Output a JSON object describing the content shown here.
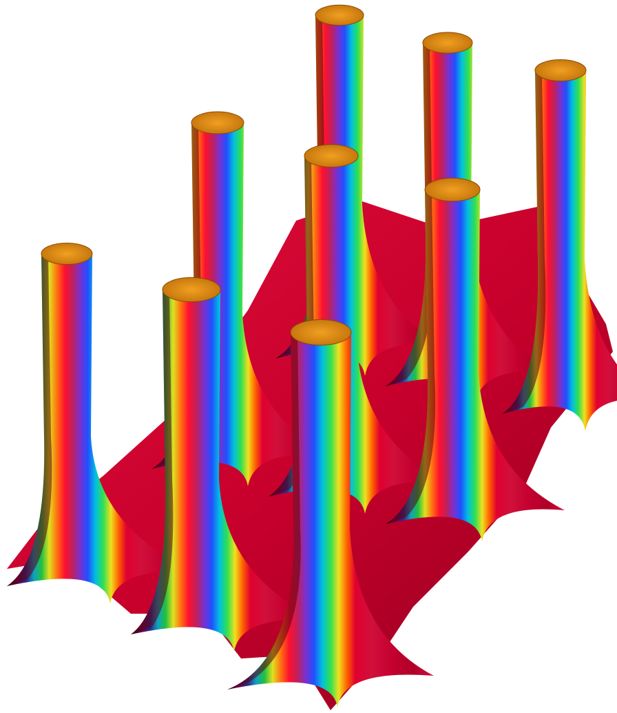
{
  "image": {
    "subject": "3D surface plot",
    "pillar_count": 9,
    "grid": "3x3",
    "colors": {
      "background": "#ffffff",
      "base": "#c8002c",
      "base_dark": "#5a0010",
      "rim": "#e0900a",
      "rim_inner": "#b8660a",
      "stripes": [
        "#ff2090",
        "#7a30ff",
        "#2060ff",
        "#00c8ff",
        "#20e040",
        "#f0f020",
        "#ff8000",
        "#ff0020",
        "#8a00a0",
        "#101030"
      ]
    }
  }
}
